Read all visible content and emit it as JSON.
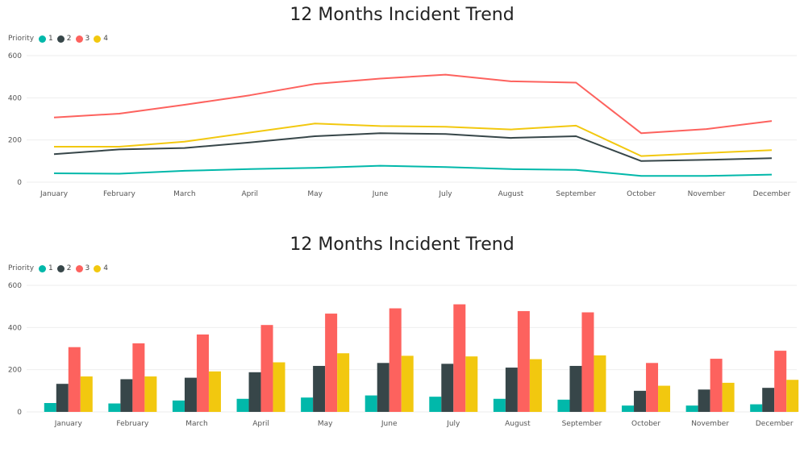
{
  "colors": {
    "1": "#01B8AA",
    "2": "#374649",
    "3": "#FD625E",
    "4": "#F2C80F",
    "grid": "#eeeeee",
    "axis_text": "#555555"
  },
  "legend": {
    "title": "Priority",
    "labels": [
      "1",
      "2",
      "3",
      "4"
    ]
  },
  "chart_data": [
    {
      "type": "line",
      "title": "12 Months Incident Trend",
      "xlabel": "",
      "ylabel": "",
      "ylim": [
        0,
        600
      ],
      "yticks": [
        "0",
        "200",
        "400",
        "600"
      ],
      "grid": true,
      "legend_placement": "top-left",
      "categories": [
        "January",
        "February",
        "March",
        "April",
        "May",
        "June",
        "July",
        "August",
        "September",
        "October",
        "November",
        "December"
      ],
      "series": [
        {
          "name": "1",
          "values": [
            42,
            40,
            54,
            62,
            68,
            78,
            72,
            62,
            58,
            30,
            30,
            36
          ]
        },
        {
          "name": "2",
          "values": [
            133,
            155,
            162,
            188,
            218,
            232,
            228,
            210,
            218,
            100,
            106,
            114
          ]
        },
        {
          "name": "3",
          "values": [
            307,
            325,
            367,
            412,
            466,
            491,
            510,
            478,
            472,
            232,
            252,
            290
          ]
        },
        {
          "name": "4",
          "values": [
            168,
            168,
            192,
            235,
            278,
            266,
            263,
            250,
            268,
            124,
            138,
            152
          ]
        }
      ]
    },
    {
      "type": "bar",
      "title": "12 Months Incident Trend",
      "xlabel": "",
      "ylabel": "",
      "ylim": [
        0,
        600
      ],
      "yticks": [
        "0",
        "200",
        "400",
        "600"
      ],
      "grid": true,
      "legend_placement": "top-left",
      "categories": [
        "January",
        "February",
        "March",
        "April",
        "May",
        "June",
        "July",
        "August",
        "September",
        "October",
        "November",
        "December"
      ],
      "series": [
        {
          "name": "1",
          "values": [
            42,
            40,
            54,
            62,
            68,
            78,
            72,
            62,
            58,
            30,
            30,
            36
          ]
        },
        {
          "name": "2",
          "values": [
            133,
            155,
            162,
            188,
            218,
            232,
            228,
            210,
            218,
            100,
            106,
            114
          ]
        },
        {
          "name": "3",
          "values": [
            307,
            325,
            367,
            412,
            466,
            491,
            510,
            478,
            472,
            232,
            252,
            290
          ]
        },
        {
          "name": "4",
          "values": [
            168,
            168,
            192,
            235,
            278,
            266,
            263,
            250,
            268,
            124,
            138,
            152
          ]
        }
      ]
    }
  ]
}
